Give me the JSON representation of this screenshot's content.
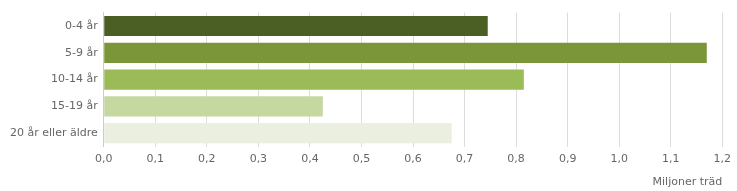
{
  "chart_data": {
    "type": "bar",
    "orientation": "horizontal",
    "categories": [
      "0-4 år",
      "5-9 år",
      "10-14 år",
      "15-19 år",
      "20 år eller äldre"
    ],
    "values": [
      0.745,
      1.17,
      0.815,
      0.425,
      0.675
    ],
    "colors": [
      "#4b5f24",
      "#7b9539",
      "#9bbb58",
      "#c5d8a0",
      "#eaefdf"
    ],
    "x_label": "Miljoner träd",
    "xlim": [
      0,
      1.2
    ],
    "xticks": [
      {
        "value": 0,
        "label": "0,0"
      },
      {
        "value": 0.1,
        "label": "0,1"
      },
      {
        "value": 0.2,
        "label": "0,2"
      },
      {
        "value": 0.3,
        "label": "0,3"
      },
      {
        "value": 0.4,
        "label": "0,4"
      },
      {
        "value": 0.5,
        "label": "0,5"
      },
      {
        "value": 0.6,
        "label": "0,6"
      },
      {
        "value": 0.7,
        "label": "0,7"
      },
      {
        "value": 0.8,
        "label": "0,8"
      },
      {
        "value": 0.9,
        "label": "0,9"
      },
      {
        "value": 1,
        "label": "1,0"
      },
      {
        "value": 1.1,
        "label": "1,1"
      },
      {
        "value": 1.2,
        "label": "1,2"
      }
    ],
    "grid": true
  }
}
